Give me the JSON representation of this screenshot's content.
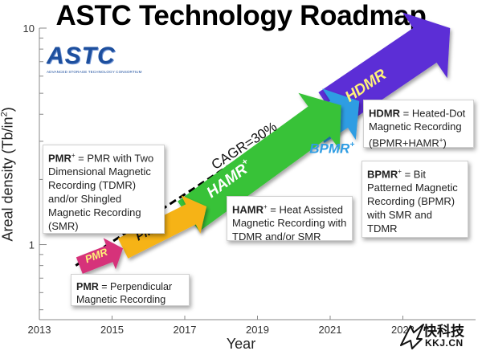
{
  "title": "ASTC Technology Roadmap",
  "logo": {
    "name": "ASTC",
    "subtitle": "ADVANCED STORAGE TECHNOLOGY CONSORTIUM"
  },
  "watermark": {
    "chinese": "快科技",
    "url": "KKJ.CN"
  },
  "colors": {
    "pmr": "#d6307a",
    "pmr_plus": "#f6b316",
    "hamr": "#38c238",
    "bpmr": "#2f9de3",
    "hdmr": "#5b2fd6",
    "text_yellow": "#fff27a",
    "dashed_line": "#000000"
  },
  "chart_data": {
    "type": "area",
    "title": "ASTC Technology Roadmap",
    "xlabel": "Year",
    "ylabel_text": "Areal density (Tb/in",
    "ylabel_sup": "2",
    "ylabel_close": ")",
    "y_scale": "log",
    "xlim": [
      2013,
      2025
    ],
    "ylim": [
      0.45,
      10
    ],
    "x_ticks": [
      "2013",
      "2015",
      "2017",
      "2019",
      "2021",
      "2023"
    ],
    "y_ticks": [
      {
        "value": 1,
        "label": "1"
      },
      {
        "value": 10,
        "label": "10"
      }
    ],
    "grid": false,
    "legend": "none",
    "trend": {
      "label": "CAGR=30%",
      "style": "dashed",
      "start": [
        2014,
        0.8
      ],
      "end": [
        2024,
        10
      ]
    },
    "arrows": [
      {
        "name": "PMR",
        "label": "PMR",
        "sup": "",
        "x0": 2014.1,
        "y0": 0.8,
        "x1": 2015.3,
        "y1": 0.96,
        "color": "#d6307a",
        "text_color": "#fff27a"
      },
      {
        "name": "PMR+",
        "label": "PMR",
        "sup": "+",
        "x0": 2015.3,
        "y0": 0.96,
        "x1": 2017.6,
        "y1": 1.5,
        "color": "#f6b316",
        "text_color": "#111111"
      },
      {
        "name": "HAMR",
        "label": "HAMR",
        "sup": "+",
        "x0": 2017.1,
        "y0": 1.35,
        "x1": 2021.3,
        "y1": 4.4,
        "color": "#38c238",
        "text_color": "#ffffff"
      },
      {
        "name": "BPMR",
        "label": "BPMR",
        "sup": "+",
        "x0": 2020.6,
        "y0": 3.4,
        "x1": 2021.8,
        "y1": 4.6,
        "color": "#2f9de3",
        "text_color": "#2f9de3"
      },
      {
        "name": "HDMR",
        "label": "HDMR",
        "sup": "",
        "x0": 2021.0,
        "y0": 4.2,
        "x1": 2024.3,
        "y1": 10.0,
        "color": "#5b2fd6",
        "text_color": "#fff27a"
      }
    ],
    "annotations": [
      {
        "name": "pmr-note",
        "bold": "PMR",
        "sup": "",
        "text": " = Perpendicular Magnetic Recording"
      },
      {
        "name": "pmr-plus-note",
        "bold": "PMR",
        "sup": "+",
        "text": " = PMR with Two Dimensional Magnetic Recording (TDMR) and/or Shingled Magnetic Recording (SMR)"
      },
      {
        "name": "hamr-note",
        "bold": "HAMR",
        "sup": "+",
        "text": " = Heat Assisted Magnetic Recording with TDMR and/or SMR"
      },
      {
        "name": "hdmr-note",
        "bold": "HDMR",
        "sup": "",
        "text": " = Heated-Dot Magnetic Recording (BPMR+HAMR",
        "text_sup": "+",
        "text_end": ")"
      },
      {
        "name": "bpmr-note",
        "bold": "BPMR",
        "sup": "+",
        "text": " = Bit Patterned Magnetic Recording (BPMR) with SMR and TDMR"
      }
    ]
  }
}
